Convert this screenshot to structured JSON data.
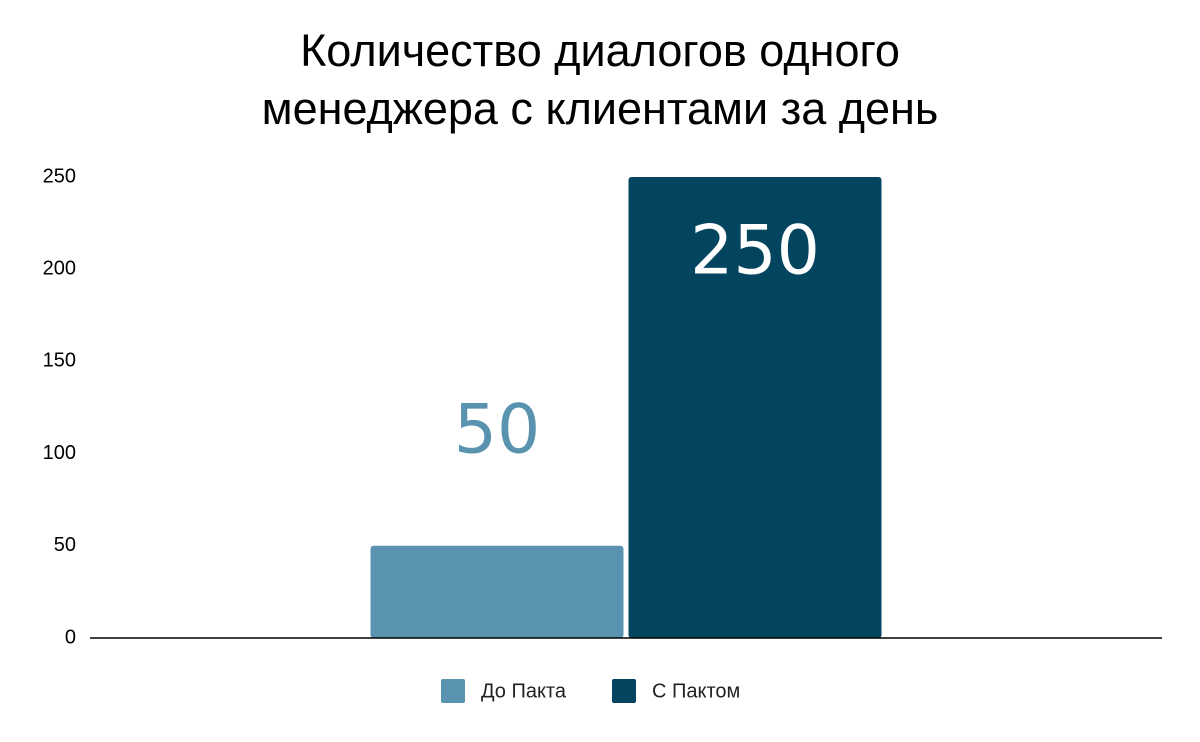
{
  "chart_data": {
    "type": "bar",
    "title": "Количество диалогов одного менеджера с клиентами за день",
    "categories": [
      null
    ],
    "series": [
      {
        "name": "До Пакта",
        "color": "#5a93b0",
        "values": [
          50
        ]
      },
      {
        "name": "С Пактом",
        "color": "#03445f",
        "values": [
          250
        ]
      }
    ],
    "ylim": [
      0,
      250
    ],
    "yticks": [
      0,
      50,
      100,
      150,
      200,
      250
    ],
    "grid": false,
    "legend": "bottom"
  }
}
